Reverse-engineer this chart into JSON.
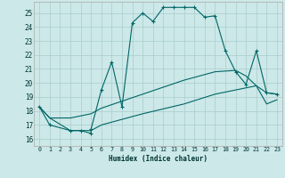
{
  "title": "",
  "xlabel": "Humidex (Indice chaleur)",
  "background_color": "#cce8e8",
  "grid_color": "#aacccc",
  "line_color": "#006666",
  "xlim": [
    -0.5,
    23.5
  ],
  "ylim": [
    15.5,
    25.8
  ],
  "yticks": [
    16,
    17,
    18,
    19,
    20,
    21,
    22,
    23,
    24,
    25
  ],
  "xticks": [
    0,
    1,
    2,
    3,
    4,
    5,
    6,
    7,
    8,
    9,
    10,
    11,
    12,
    13,
    14,
    15,
    16,
    17,
    18,
    19,
    20,
    21,
    22,
    23
  ],
  "line1_x": [
    0,
    1,
    3,
    4,
    5,
    5,
    6,
    7,
    8,
    9,
    10,
    11,
    12,
    13,
    14,
    15,
    16,
    17,
    18,
    19,
    20,
    21,
    22,
    23
  ],
  "line1_y": [
    18.3,
    17.0,
    16.6,
    16.6,
    16.4,
    16.7,
    19.5,
    21.5,
    18.3,
    24.3,
    25.0,
    24.4,
    25.4,
    25.4,
    25.4,
    25.4,
    24.7,
    24.8,
    22.3,
    20.8,
    19.9,
    22.3,
    19.3,
    19.2
  ],
  "line2_x": [
    0,
    1,
    3,
    5,
    6,
    10,
    14,
    17,
    19,
    20,
    21,
    22,
    23
  ],
  "line2_y": [
    18.3,
    17.5,
    17.5,
    17.8,
    18.2,
    19.2,
    20.2,
    20.8,
    20.9,
    20.5,
    19.8,
    19.3,
    19.2
  ],
  "line3_x": [
    0,
    1,
    3,
    5,
    6,
    10,
    14,
    17,
    19,
    21,
    22,
    23
  ],
  "line3_y": [
    18.3,
    17.5,
    16.6,
    16.6,
    17.0,
    17.8,
    18.5,
    19.2,
    19.5,
    19.8,
    18.5,
    18.8
  ]
}
